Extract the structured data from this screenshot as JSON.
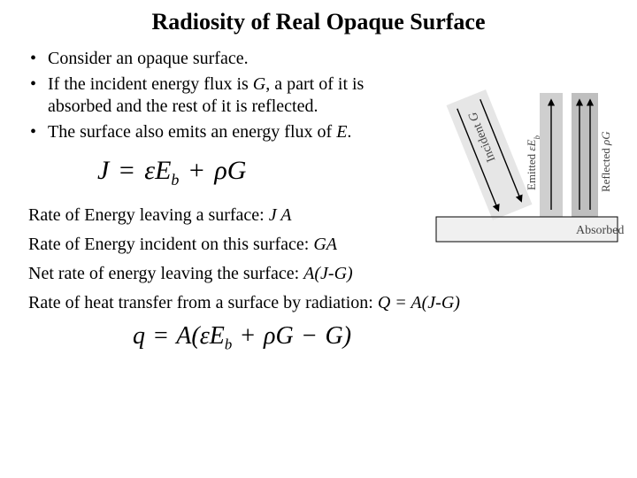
{
  "title": "Radiosity of Real Opaque Surface",
  "bullets": [
    "Consider an opaque surface.",
    "If the incident energy flux is <span class=\"italic\">G</span>, a part of it is absorbed and the rest of it is reflected.",
    "The surface also emits an energy flux of <span class=\"italic\">E</span>."
  ],
  "equation1_html": "J <span class=\"op\">=</span> &epsilon;E<sub>b</sub> <span class=\"op\">+</span> &rho;G",
  "lines": [
    "Rate of Energy leaving a surface: <span class=\"italic\">J A</span>",
    "Rate of Energy incident on this surface: <span class=\"italic\">GA</span>",
    "Net rate of energy leaving the surface: <span class=\"italic\">A(J-G)</span>",
    "Rate of heat transfer from a surface by radiation: <span class=\"italic\">Q = A(J-G)</span>"
  ],
  "equation2_html": "q <span class=\"op\">=</span> A(&epsilon;E<sub>b</sub> <span class=\"op\">+</span> &rho;G <span class=\"op\">&minus;</span> G)",
  "diagram": {
    "labels": {
      "incident": "Incident G",
      "emitted": "Emitted εE_b",
      "reflected": "Reflected ρG",
      "absorbed": "Absorbed"
    },
    "colors": {
      "surface_fill": "#f0f0f0",
      "surface_border": "#000000",
      "light_fill": "#e6e6e6",
      "mid_fill": "#cfcfcf",
      "dark_fill": "#bfbfbf",
      "text": "#444444",
      "arrow": "#000000"
    }
  }
}
